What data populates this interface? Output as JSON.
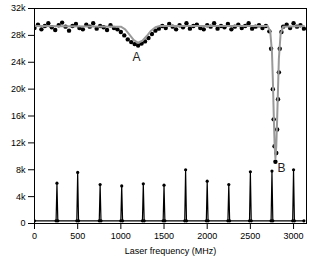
{
  "chart_data": {
    "type": "scatter",
    "x_label": "Laser frequency (MHz)",
    "xlim": [
      0,
      3150
    ],
    "xticks": [
      0,
      500,
      1000,
      1500,
      2000,
      2500,
      3000
    ],
    "ylim": [
      0,
      32000
    ],
    "yticks": [
      0,
      {
        "value": 4000,
        "label": "4k"
      },
      {
        "value": 8000,
        "label": "8k"
      },
      {
        "value": 12000,
        "label": "12k"
      },
      {
        "value": 16000,
        "label": "16k"
      },
      {
        "value": 20000,
        "label": "20k"
      },
      {
        "value": 24000,
        "label": "24k"
      },
      {
        "value": 28000,
        "label": "28k"
      },
      {
        "value": 32000,
        "label": "32k"
      }
    ],
    "series": [
      {
        "type": "scatter",
        "color": "#000000",
        "marker": "circle",
        "x": [
          0,
          40,
          80,
          120,
          160,
          200,
          240,
          280,
          320,
          360,
          400,
          440,
          480,
          520,
          560,
          600,
          640,
          680,
          720,
          760,
          800,
          840,
          880,
          920,
          960,
          1000,
          1040,
          1080,
          1120,
          1160,
          1200,
          1240,
          1280,
          1320,
          1360,
          1400,
          1440,
          1480,
          1520,
          1560,
          1600,
          1640,
          1680,
          1720,
          1760,
          1800,
          1840,
          1880,
          1920,
          1960,
          2000,
          2040,
          2080,
          2120,
          2160,
          2200,
          2240,
          2280,
          2320,
          2360,
          2400,
          2440,
          2480,
          2520,
          2560,
          2600,
          2640,
          2680,
          2720,
          2740,
          2760,
          2770,
          2780,
          2790,
          2800,
          2810,
          2820,
          2830,
          2840,
          2860,
          2880,
          2920,
          2960,
          3000,
          3040,
          3080,
          3120
        ],
        "values": [
          29100,
          29600,
          28900,
          29400,
          29800,
          29200,
          28800,
          29500,
          29900,
          29300,
          28700,
          29400,
          29700,
          29100,
          28900,
          29600,
          29300,
          29800,
          29000,
          29400,
          29200,
          28800,
          29500,
          29100,
          28900,
          28500,
          28000,
          27400,
          27000,
          26700,
          26500,
          26800,
          27100,
          27600,
          28200,
          28700,
          29000,
          29400,
          29100,
          29700,
          29300,
          28900,
          29500,
          29200,
          29800,
          29000,
          29400,
          29600,
          29100,
          28900,
          29500,
          29300,
          29800,
          29000,
          29400,
          29200,
          29700,
          28900,
          29300,
          29600,
          29100,
          29400,
          29800,
          29000,
          29300,
          29500,
          29100,
          29400,
          28600,
          26000,
          20000,
          15500,
          11500,
          9200,
          10500,
          14000,
          18500,
          22500,
          26000,
          28500,
          29300,
          29600,
          29100,
          29800,
          29300,
          29500,
          29000
        ]
      },
      {
        "type": "line",
        "color": "#999999",
        "line_style": "solid",
        "x": [
          0,
          1000,
          1050,
          1100,
          1150,
          1200,
          1250,
          1300,
          1350,
          1400,
          1450,
          2700,
          2730,
          2750,
          2760,
          2770,
          2780,
          2790,
          2800,
          2810,
          2820,
          2830,
          2850,
          2880,
          3120
        ],
        "values": [
          29400,
          29300,
          28900,
          28100,
          27300,
          26900,
          27200,
          27900,
          28700,
          29200,
          29400,
          29400,
          28600,
          25500,
          21500,
          16500,
          12000,
          9700,
          11500,
          15500,
          20000,
          24500,
          28200,
          29300,
          29400
        ]
      },
      {
        "type": "line",
        "color": "#000000",
        "line_style": "solid",
        "marker": "circle",
        "x": [
          0,
          250,
          260,
          270,
          490,
          500,
          510,
          750,
          760,
          770,
          1000,
          1010,
          1020,
          1250,
          1260,
          1270,
          1490,
          1500,
          1510,
          1740,
          1750,
          1760,
          1990,
          2000,
          2010,
          2240,
          2250,
          2260,
          2490,
          2500,
          2510,
          2740,
          2750,
          2760,
          2990,
          3000,
          3010,
          3120
        ],
        "values": [
          400,
          400,
          6000,
          400,
          400,
          7600,
          400,
          400,
          5800,
          400,
          400,
          5600,
          400,
          400,
          5900,
          400,
          400,
          5700,
          400,
          400,
          8000,
          400,
          400,
          6300,
          400,
          400,
          5800,
          400,
          400,
          7700,
          400,
          400,
          7800,
          400,
          400,
          8000,
          400,
          400
        ]
      }
    ],
    "annotations": [
      {
        "text": "A",
        "x": 1180,
        "y": 24800
      },
      {
        "text": "B",
        "x": 2860,
        "y": 8200
      }
    ]
  }
}
